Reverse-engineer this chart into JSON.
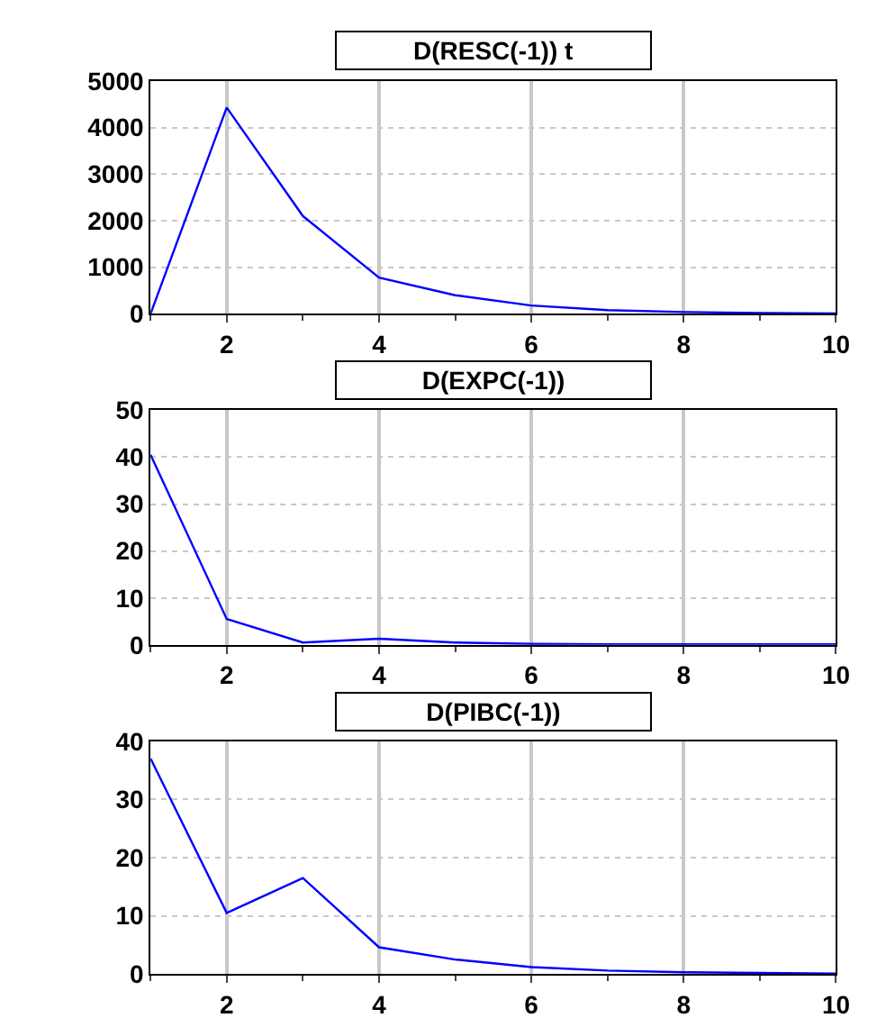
{
  "chart_data": [
    {
      "type": "line",
      "title": "D(RESC(-1)) t",
      "x": [
        1,
        2,
        3,
        4,
        5,
        6,
        7,
        8,
        9,
        10
      ],
      "xlim": [
        1,
        10
      ],
      "xticks": [
        2,
        4,
        6,
        8,
        10
      ],
      "ylim": [
        0,
        5000
      ],
      "yticks": [
        0,
        1000,
        2000,
        3000,
        4000,
        5000
      ],
      "grid": true,
      "series": [
        {
          "color": "#0000ff",
          "values": [
            0,
            4430,
            2100,
            780,
            400,
            180,
            80,
            40,
            20,
            10
          ]
        }
      ]
    },
    {
      "type": "line",
      "title": "D(EXPC(-1))",
      "x": [
        1,
        2,
        3,
        4,
        5,
        6,
        7,
        8,
        9,
        10
      ],
      "xlim": [
        1,
        10
      ],
      "xticks": [
        2,
        4,
        6,
        8,
        10
      ],
      "ylim": [
        0,
        50
      ],
      "yticks": [
        0,
        10,
        20,
        30,
        40,
        50
      ],
      "grid": true,
      "series": [
        {
          "color": "#0000ff",
          "values": [
            40.5,
            5.5,
            0.5,
            1.3,
            0.5,
            0.2,
            0.1,
            0.1,
            0.1,
            0.1
          ]
        }
      ]
    },
    {
      "type": "line",
      "title": "D(PIBC(-1))",
      "x": [
        1,
        2,
        3,
        4,
        5,
        6,
        7,
        8,
        9,
        10
      ],
      "xlim": [
        1,
        10
      ],
      "xticks": [
        2,
        4,
        6,
        8,
        10
      ],
      "ylim": [
        0,
        40
      ],
      "yticks": [
        0,
        10,
        20,
        30,
        40
      ],
      "grid": true,
      "series": [
        {
          "color": "#0000ff",
          "values": [
            37,
            10.5,
            16.5,
            4.6,
            2.5,
            1.2,
            0.6,
            0.3,
            0.2,
            0.1
          ]
        }
      ]
    }
  ]
}
